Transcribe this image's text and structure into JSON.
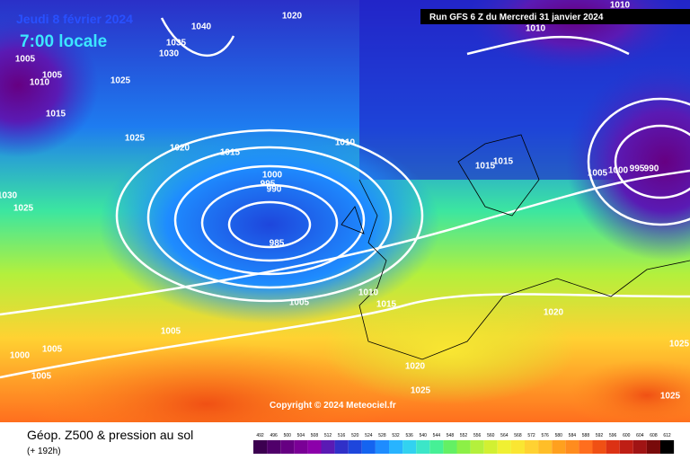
{
  "header": {
    "date": "Jeudi 8 février 2024",
    "time": "7:00 locale",
    "run": "Run GFS 6 Z du Mercredi 31 janvier 2024"
  },
  "copyright": "Copyright © 2024 Meteociel.fr",
  "footer": {
    "title": "Géop. Z500 & pression au sol",
    "subtitle": "(+ 192h)"
  },
  "legend": {
    "values": [
      "492",
      "496",
      "500",
      "504",
      "508",
      "512",
      "516",
      "520",
      "524",
      "528",
      "532",
      "536",
      "540",
      "544",
      "548",
      "552",
      "556",
      "560",
      "564",
      "568",
      "572",
      "576",
      "580",
      "584",
      "588",
      "592",
      "596",
      "600",
      "604",
      "608",
      "612"
    ],
    "colors": [
      "#3c0050",
      "#50006a",
      "#660082",
      "#7a0096",
      "#8c00aa",
      "#5a1ab4",
      "#3030c8",
      "#1e46dc",
      "#1464f0",
      "#1e8cff",
      "#28b4ff",
      "#32d2f0",
      "#3ce6c8",
      "#46f096",
      "#64f064",
      "#8cf046",
      "#b4f03c",
      "#d2f032",
      "#f0f032",
      "#fae632",
      "#ffd232",
      "#ffbe28",
      "#ffa01e",
      "#ff8c1e",
      "#ff6e1e",
      "#f05014",
      "#dc3214",
      "#be1e14",
      "#a01414",
      "#780a0a",
      "#000000"
    ]
  },
  "isobars": [
    "1020",
    "1040",
    "1035",
    "1030",
    "1005",
    "1005",
    "1010",
    "1025",
    "1015",
    "1025",
    "1020",
    "1015",
    "1010",
    "1015",
    "1015",
    "1000",
    "995",
    "990",
    "985",
    "1005",
    "1000",
    "995",
    "990",
    "1010",
    "1010",
    "1030",
    "1025",
    "1010",
    "1015",
    "1005",
    "1005",
    "1005",
    "1000",
    "1005",
    "1020",
    "1020",
    "1025",
    "1025",
    "1025"
  ]
}
